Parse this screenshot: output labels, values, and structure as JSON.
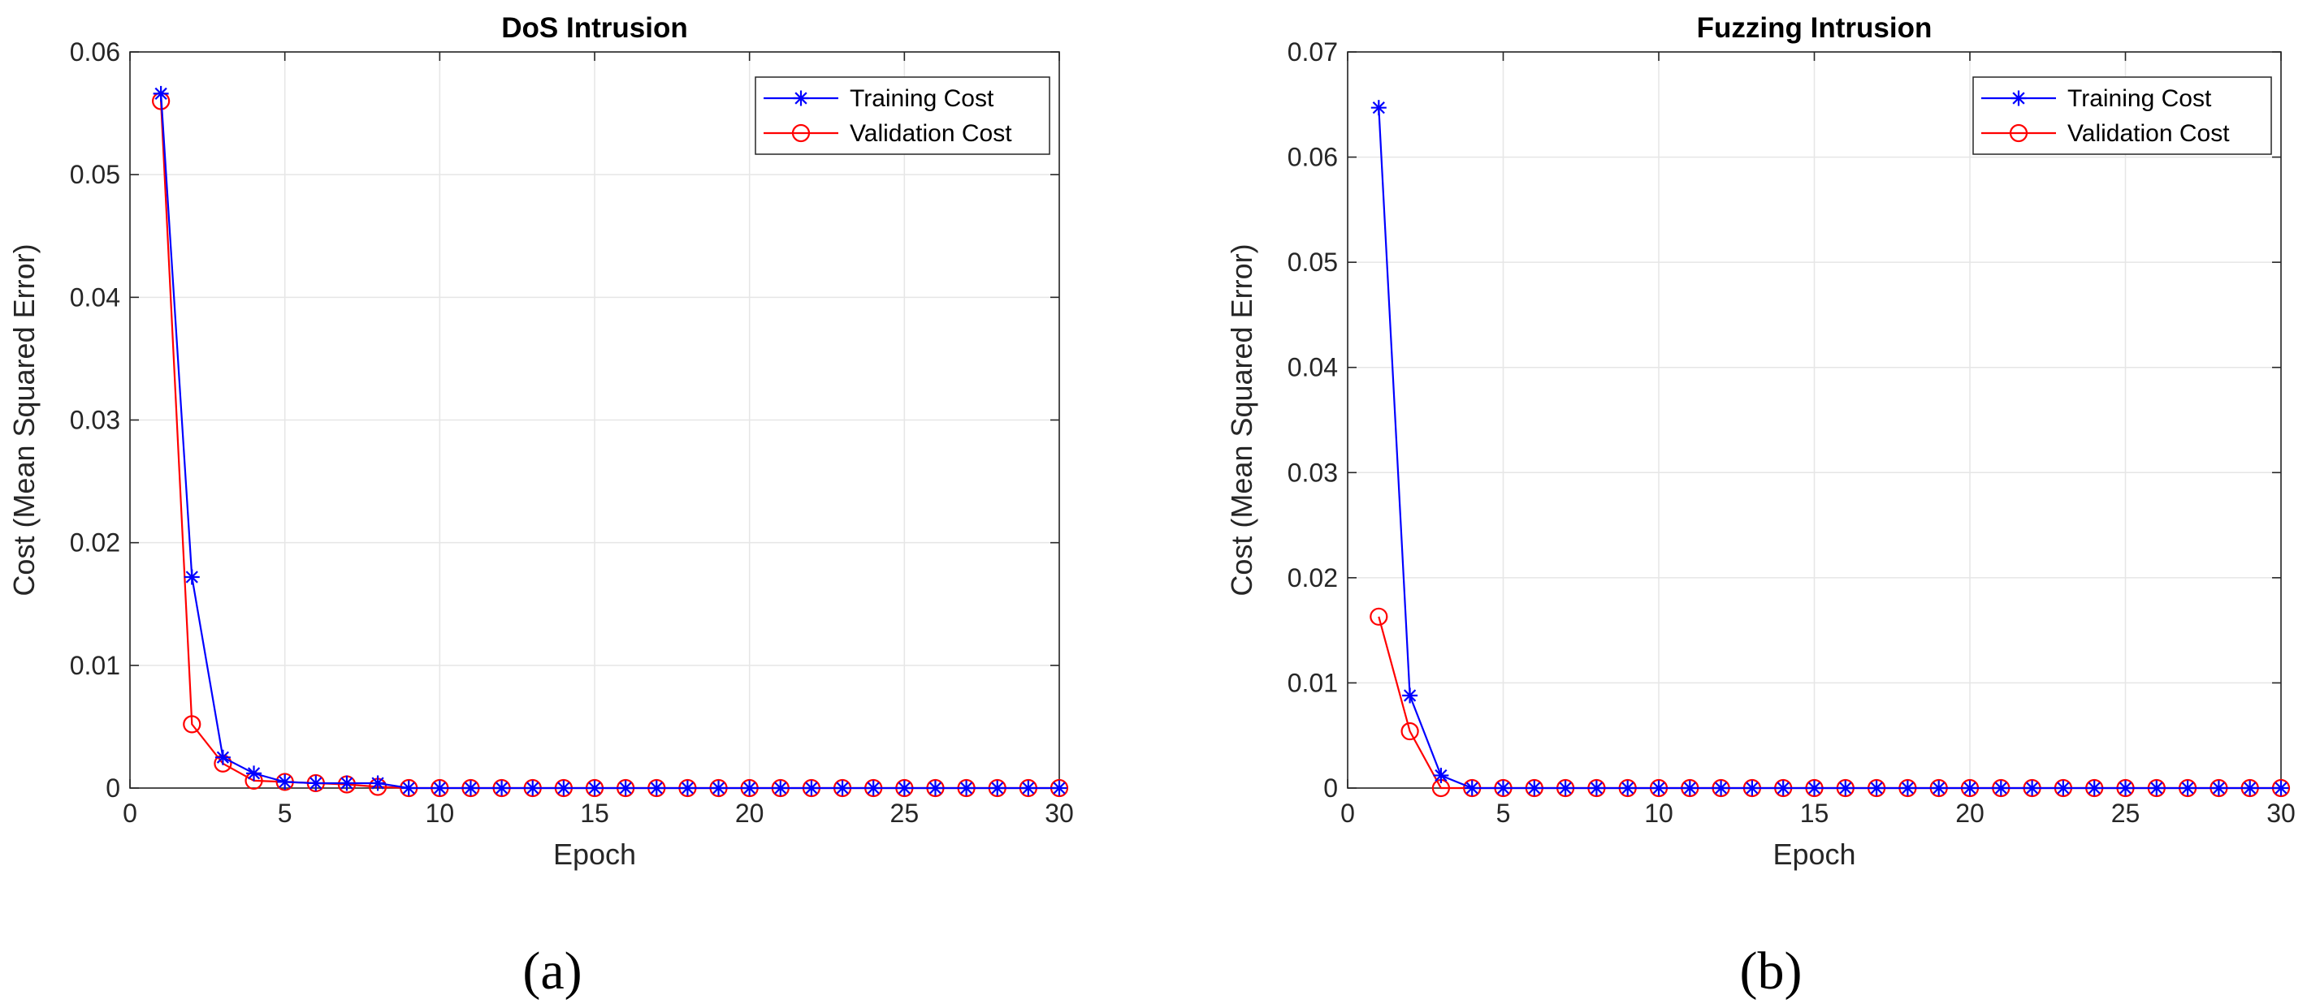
{
  "chart_data": [
    {
      "type": "line",
      "title": "DoS Intrusion",
      "xlabel": "Epoch",
      "ylabel": "Cost (Mean Squared Error)",
      "xlim": [
        0,
        30
      ],
      "ylim": [
        0,
        0.06
      ],
      "xticks": [
        "0",
        "5",
        "10",
        "15",
        "20",
        "25",
        "30"
      ],
      "yticks": [
        "0",
        "0.01",
        "0.02",
        "0.03",
        "0.04",
        "0.05",
        "0.06"
      ],
      "grid": true,
      "legend_position": "top-right",
      "panel_label": "(a)",
      "x": [
        1,
        2,
        3,
        4,
        5,
        6,
        7,
        8,
        9,
        10,
        11,
        12,
        13,
        14,
        15,
        16,
        17,
        18,
        19,
        20,
        21,
        22,
        23,
        24,
        25,
        26,
        27,
        28,
        29,
        30
      ],
      "series": [
        {
          "name": "Training Cost",
          "color": "#0000ff",
          "marker": "asterisk",
          "values": [
            0.0566,
            0.0172,
            0.0025,
            0.0012,
            0.0005,
            0.0004,
            0.0004,
            0.0004,
            0,
            0,
            0,
            0,
            0,
            0,
            0,
            0,
            0,
            0,
            0,
            0,
            0,
            0,
            0,
            0,
            0,
            0,
            0,
            0,
            0,
            0
          ]
        },
        {
          "name": "Validation Cost",
          "color": "#ff0000",
          "marker": "circle",
          "values": [
            0.056,
            0.0052,
            0.002,
            0.0006,
            0.0005,
            0.0004,
            0.0003,
            0.0001,
            0,
            0,
            0,
            0,
            0,
            0,
            0,
            0,
            0,
            0,
            0,
            0,
            0,
            0,
            0,
            0,
            0,
            0,
            0,
            0,
            0,
            0
          ]
        }
      ]
    },
    {
      "type": "line",
      "title": "Fuzzing Intrusion",
      "xlabel": "Epoch",
      "ylabel": "Cost (Mean Squared Error)",
      "xlim": [
        0,
        30
      ],
      "ylim": [
        0,
        0.07
      ],
      "xticks": [
        "0",
        "5",
        "10",
        "15",
        "20",
        "25",
        "30"
      ],
      "yticks": [
        "0",
        "0.01",
        "0.02",
        "0.03",
        "0.04",
        "0.05",
        "0.06",
        "0.07"
      ],
      "grid": true,
      "legend_position": "top-right",
      "panel_label": "(b)",
      "x": [
        1,
        2,
        3,
        4,
        5,
        6,
        7,
        8,
        9,
        10,
        11,
        12,
        13,
        14,
        15,
        16,
        17,
        18,
        19,
        20,
        21,
        22,
        23,
        24,
        25,
        26,
        27,
        28,
        29,
        30
      ],
      "series": [
        {
          "name": "Training Cost",
          "color": "#0000ff",
          "marker": "asterisk",
          "values": [
            0.0647,
            0.0088,
            0.0012,
            0,
            0,
            0,
            0,
            0,
            0,
            0,
            0,
            0,
            0,
            0,
            0,
            0,
            0,
            0,
            0,
            0,
            0,
            0,
            0,
            0,
            0,
            0,
            0,
            0,
            0,
            0
          ]
        },
        {
          "name": "Validation Cost",
          "color": "#ff0000",
          "marker": "circle",
          "values": [
            0.0163,
            0.0054,
            0,
            0,
            0,
            0,
            0,
            0,
            0,
            0,
            0,
            0,
            0,
            0,
            0,
            0,
            0,
            0,
            0,
            0,
            0,
            0,
            0,
            0,
            0,
            0,
            0,
            0,
            0,
            0
          ]
        }
      ]
    }
  ]
}
